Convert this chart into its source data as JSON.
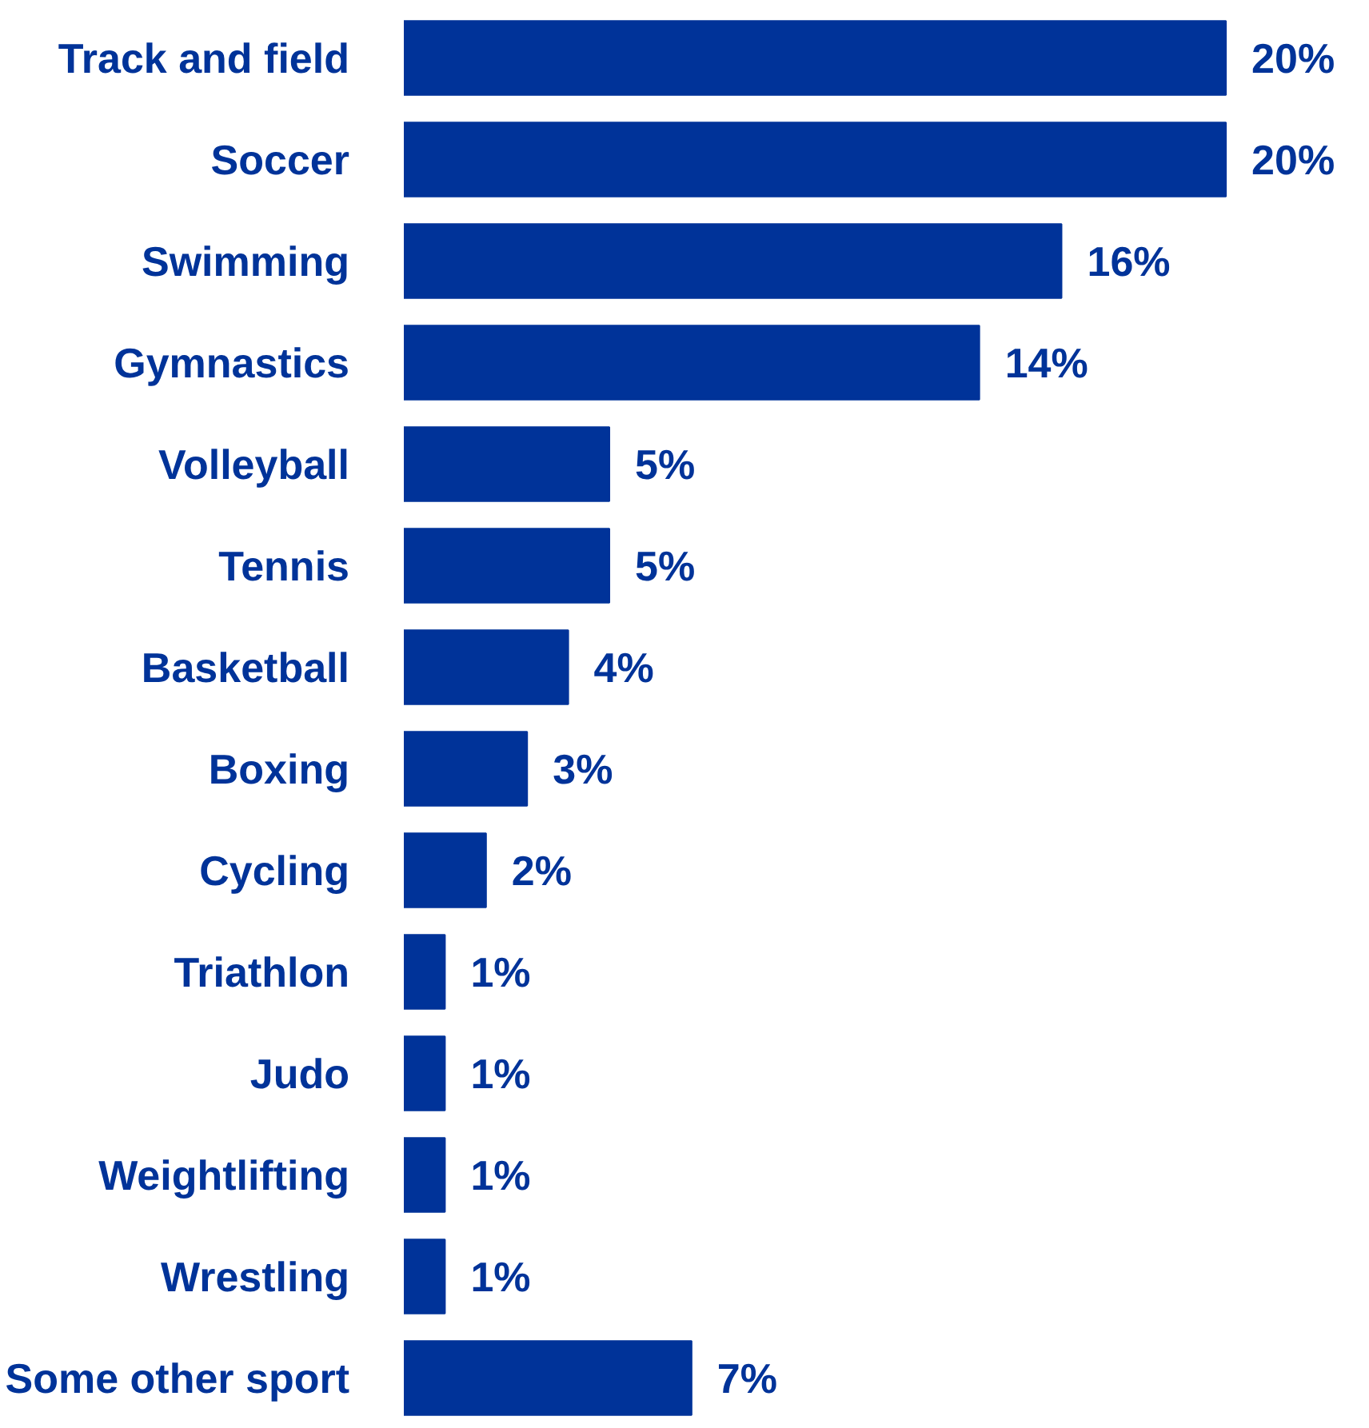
{
  "chart_data": {
    "type": "bar",
    "orientation": "horizontal",
    "categories": [
      "Track and field",
      "Soccer",
      "Swimming",
      "Gymnastics",
      "Volleyball",
      "Tennis",
      "Basketball",
      "Boxing",
      "Cycling",
      "Triathlon",
      "Judo",
      "Weightlifting",
      "Wrestling",
      "Some other sport"
    ],
    "values": [
      20,
      20,
      16,
      14,
      5,
      5,
      4,
      3,
      2,
      1,
      1,
      1,
      1,
      7
    ],
    "value_labels": [
      "20%",
      "20%",
      "16%",
      "14%",
      "5%",
      "5%",
      "4%",
      "3%",
      "2%",
      "1%",
      "1%",
      "1%",
      "1%",
      "7%"
    ],
    "color": "#003399"
  }
}
